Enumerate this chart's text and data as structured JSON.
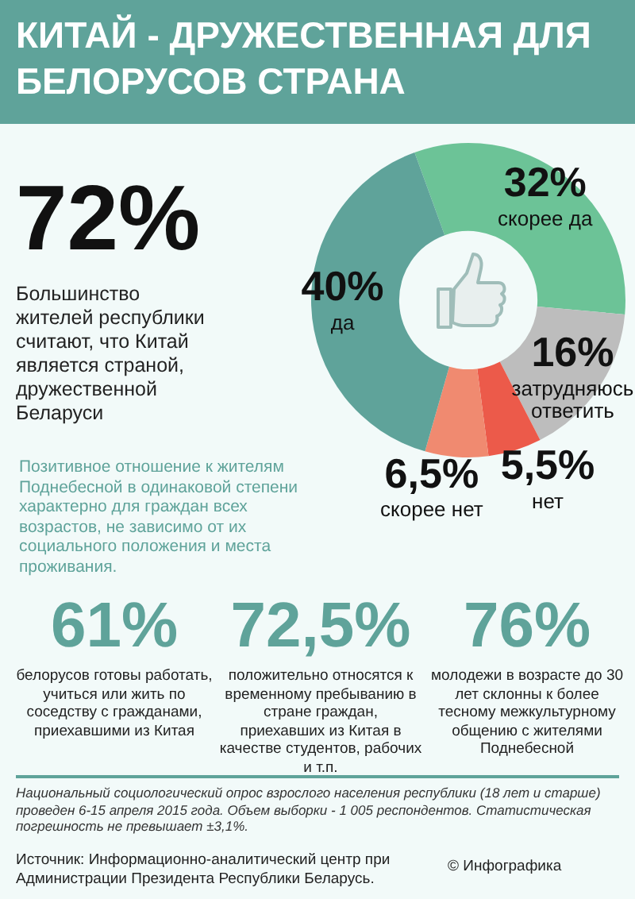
{
  "chart_data": {
    "type": "donut",
    "title": "КИТАЙ - ДРУЖЕСТВЕННАЯ ДЛЯ БЕЛОРУСОВ СТРАНА",
    "categories": [
      "скорее да",
      "затрудняюсь ответить",
      "нет",
      "скорее нет",
      "да"
    ],
    "values": [
      32,
      16,
      5.5,
      6.5,
      40
    ],
    "value_labels": [
      "32%",
      "16%",
      "5,5%",
      "6,5%",
      "40%"
    ],
    "colors": [
      "#6cc397",
      "#bdbdbd",
      "#ec5a4a",
      "#f08a70",
      "#5fa39a"
    ],
    "annotations": [
      "72%",
      "Большинство жителей республики считают, что Китай является страной, дружественной Беларуси",
      "Позитивное отношение к жителям Поднебесной в одинаковой степени характерно для граждан всех возрастов, не зависимо от их социального положения и места проживания.",
      "61%",
      "белорусов готовы работать, учиться или жить по соседству с гражданами, приехавшими из Китая",
      "72,5%",
      "положительно относятся к временному пребыванию в стране граждан, приехавших из Китая в качестве студентов, рабочих и т.п.",
      "76%",
      "молодежи в возрасте до 30 лет склонны к более тесному межкультурному общению с жителями Поднебесной",
      "Национальный социологический опрос взрослого населения республики (18 лет и старше) проведен 6-15 апреля 2015 года. Объем выборки - 1 005 респондентов. Статистическая погрешность не превышает ±3,1%.",
      "Источник: Информационно-аналитический центр при Администрации Президента Республики Беларусь.",
      "© Инфографика"
    ]
  }
}
